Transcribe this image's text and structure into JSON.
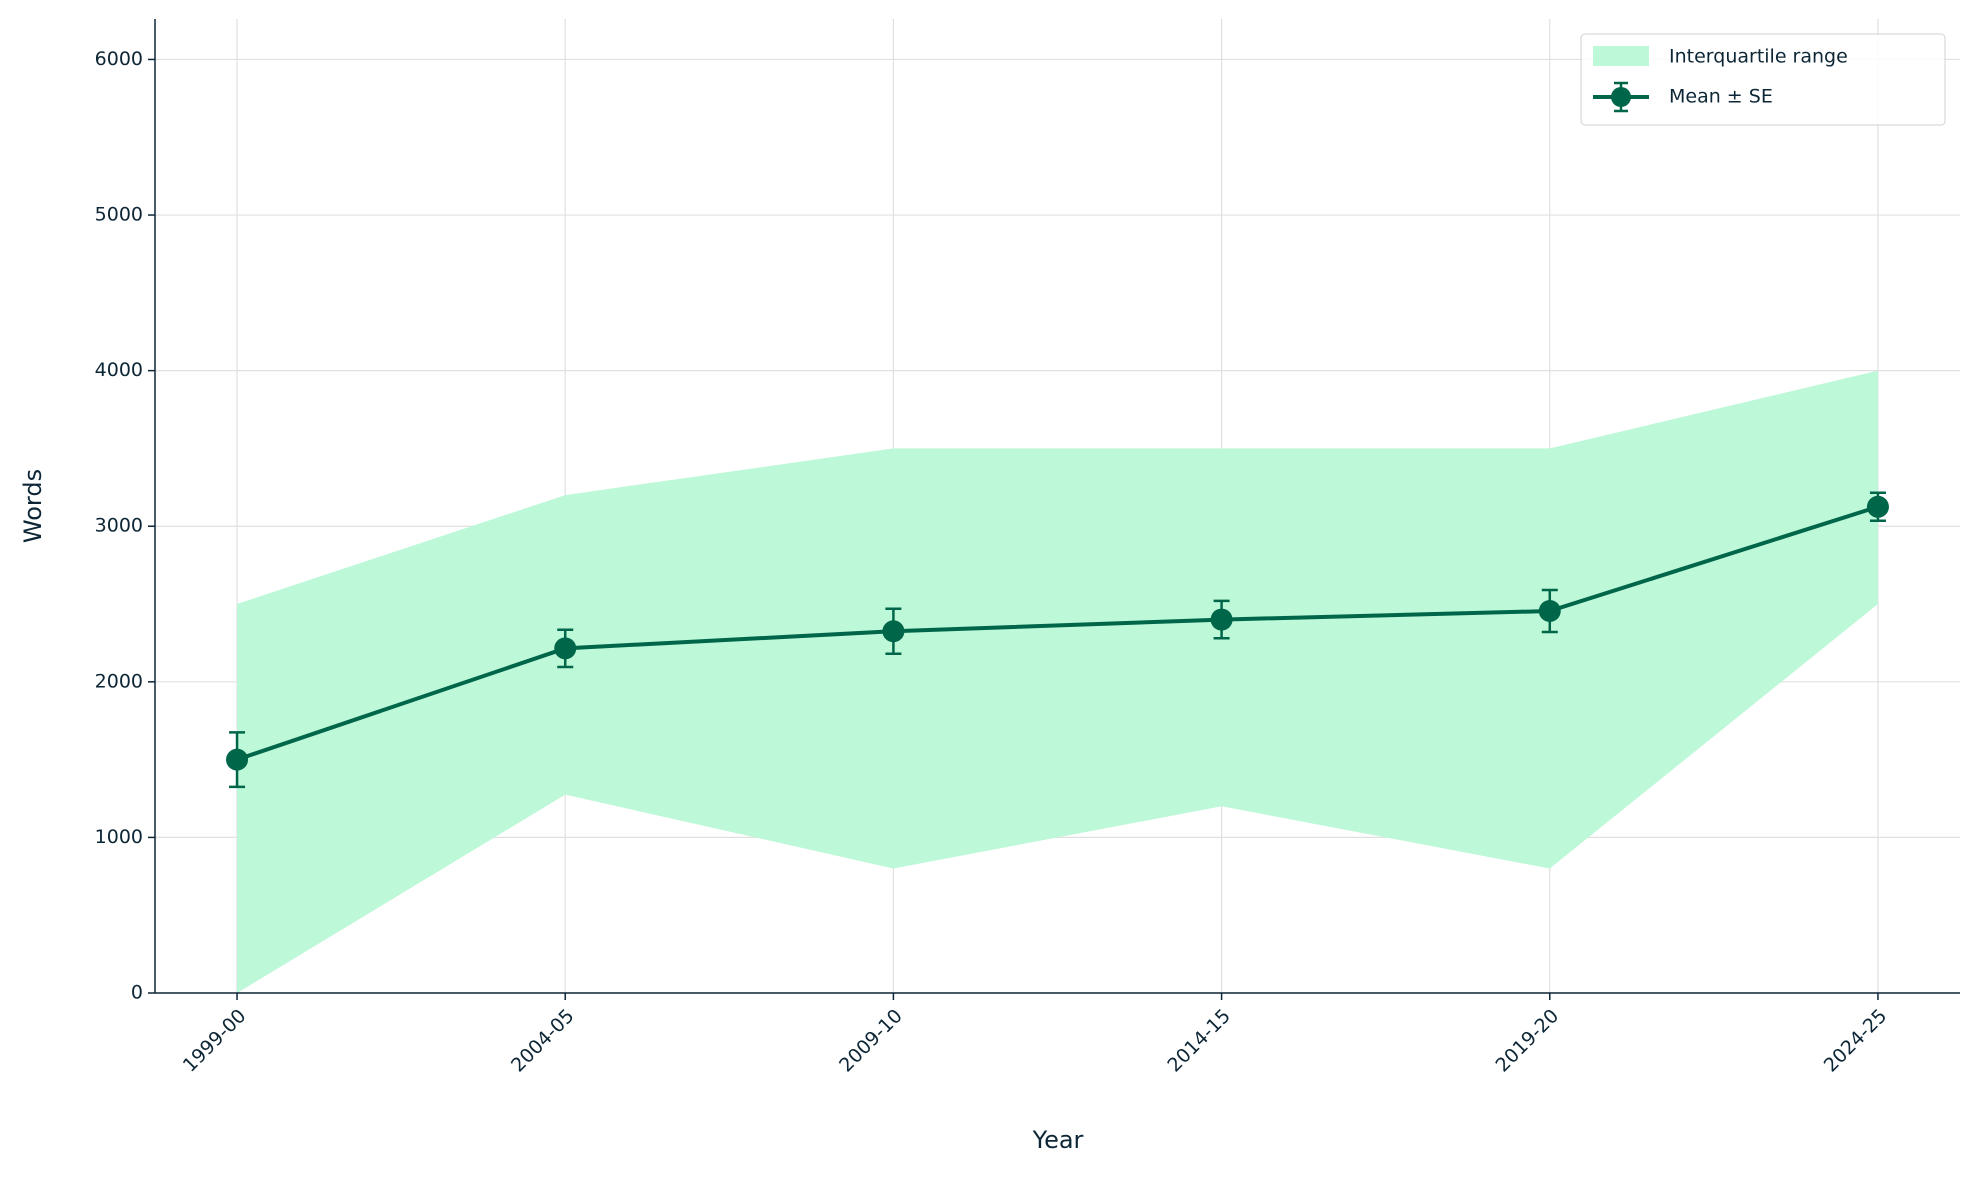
{
  "chart_data": {
    "type": "line",
    "x_label": "Year",
    "y_label": "Words",
    "categories": [
      "1999-00",
      "2004-05",
      "2009-10",
      "2014-15",
      "2019-20",
      "2024-25"
    ],
    "band": {
      "name": "Interquartile range",
      "color": "#bdf8d8",
      "lower": [
        0,
        1275,
        800,
        1200,
        800,
        2500
      ],
      "upper": [
        2500,
        3200,
        3500,
        3500,
        3500,
        4000
      ]
    },
    "series": [
      {
        "name": "Mean ± SE",
        "color": "#00664a",
        "values": [
          1500,
          2215,
          2325,
          2400,
          2455,
          3125
        ],
        "errors": [
          175,
          120,
          145,
          120,
          135,
          90
        ]
      }
    ],
    "ylim": [
      0,
      6260
    ],
    "yticks": [
      0,
      1000,
      2000,
      3000,
      4000,
      5000,
      6000
    ],
    "grid": true,
    "legend": "upper right"
  }
}
